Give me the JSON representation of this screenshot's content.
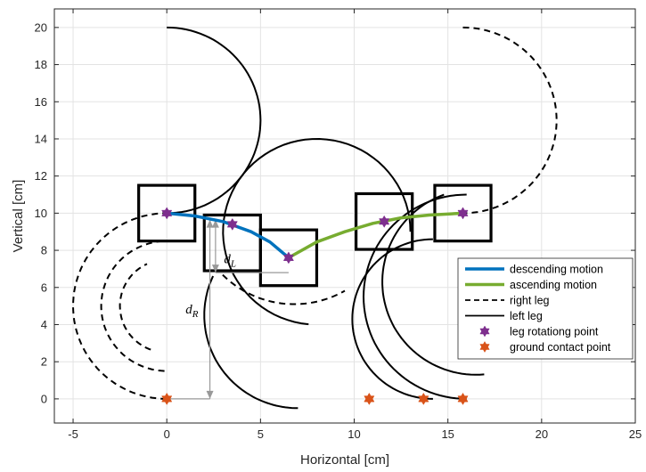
{
  "chart_data": {
    "type": "line",
    "xlabel": "Horizontal [cm]",
    "ylabel": "Vertical [cm]",
    "xlim": [
      -6,
      25
    ],
    "ylim": [
      -1.3,
      21
    ],
    "xticks": [
      -5,
      0,
      5,
      10,
      15,
      20,
      25
    ],
    "yticks": [
      0,
      2,
      4,
      6,
      8,
      10,
      12,
      14,
      16,
      18,
      20
    ],
    "grid": true,
    "legend_position": "bottom-right",
    "colors": {
      "descending": "#0072BD",
      "ascending": "#77AC30",
      "rotation_point": "#7E2F8E",
      "ground_point": "#D95319",
      "leg": "#000000",
      "annotation": "#999999"
    },
    "legend": [
      {
        "label": "descending motion",
        "style": "line",
        "color": "#0072BD"
      },
      {
        "label": "ascending motion",
        "style": "line",
        "color": "#77AC30"
      },
      {
        "label": "right leg",
        "style": "dashed",
        "color": "#000000"
      },
      {
        "label": "left leg",
        "style": "solid",
        "color": "#000000"
      },
      {
        "label": "leg rotationg point",
        "style": "marker",
        "color": "#7E2F8E"
      },
      {
        "label": "ground contact point",
        "style": "marker",
        "color": "#D95319"
      }
    ],
    "descending_motion": [
      [
        0,
        10
      ],
      [
        1.5,
        9.85
      ],
      [
        3,
        9.55
      ],
      [
        4.5,
        9.0
      ],
      [
        5.5,
        8.45
      ],
      [
        6.5,
        7.6
      ]
    ],
    "ascending_motion": [
      [
        6.5,
        7.6
      ],
      [
        8,
        8.45
      ],
      [
        9.5,
        9.0
      ],
      [
        11,
        9.45
      ],
      [
        12.5,
        9.75
      ],
      [
        14,
        9.9
      ],
      [
        15.8,
        10.0
      ]
    ],
    "leg_rotation_points": [
      [
        0,
        10
      ],
      [
        3.5,
        9.4
      ],
      [
        6.5,
        7.6
      ],
      [
        11.6,
        9.55
      ],
      [
        15.8,
        10.0
      ]
    ],
    "ground_contact_points": [
      [
        0,
        0
      ],
      [
        10.8,
        0
      ],
      [
        13.7,
        0
      ],
      [
        15.8,
        0
      ]
    ],
    "body_boxes": [
      {
        "cx": 0,
        "cy": 10
      },
      {
        "cx": 3.5,
        "cy": 8.4
      },
      {
        "cx": 6.5,
        "cy": 7.6
      },
      {
        "cx": 11.6,
        "cy": 9.55
      },
      {
        "cx": 15.8,
        "cy": 10.0
      }
    ],
    "legs": [
      {
        "kind": "left",
        "cx": 0,
        "cy": 15,
        "r": 5,
        "start_deg": 90,
        "end_deg": -90
      },
      {
        "kind": "right",
        "cx": 0,
        "cy": 5,
        "r": 5,
        "start_deg": 270,
        "end_deg": 90
      },
      {
        "kind": "right",
        "cx": 0,
        "cy": 5,
        "r": 3.5,
        "start_deg": 268,
        "end_deg": 95
      },
      {
        "kind": "right",
        "cx": 0,
        "cy": 5,
        "r": 2.5,
        "start_deg": 250,
        "end_deg": 115
      },
      {
        "kind": "right",
        "cx": 6.8,
        "cy": 10.5,
        "r": 5.4,
        "start_deg": 225,
        "end_deg": 300,
        "reverse": true
      },
      {
        "kind": "left",
        "cx": 8.0,
        "cy": 9.0,
        "r": 5.0,
        "start_deg": 265,
        "end_deg": 0,
        "reverse": true
      },
      {
        "kind": "left",
        "cx": 7.0,
        "cy": 4.5,
        "r": 5.0,
        "start_deg": 155,
        "end_deg": 270
      },
      {
        "kind": "left",
        "cx": 14.2,
        "cy": 4.3,
        "r": 4.3,
        "start_deg": 90,
        "end_deg": 270
      },
      {
        "kind": "left",
        "cx": 16.0,
        "cy": 5.5,
        "r": 5.5,
        "start_deg": 90,
        "end_deg": 270
      },
      {
        "kind": "left",
        "cx": 16.5,
        "cy": 6.3,
        "r": 5.0,
        "start_deg": 110,
        "end_deg": 275
      },
      {
        "kind": "right",
        "cx": 15.8,
        "cy": 15.0,
        "r": 5.0,
        "start_deg": 90,
        "end_deg": -90,
        "reverse": true
      }
    ],
    "annotations": {
      "d_L": {
        "text": "d",
        "sub": "L"
      },
      "d_R": {
        "text": "d",
        "sub": "R"
      }
    }
  }
}
